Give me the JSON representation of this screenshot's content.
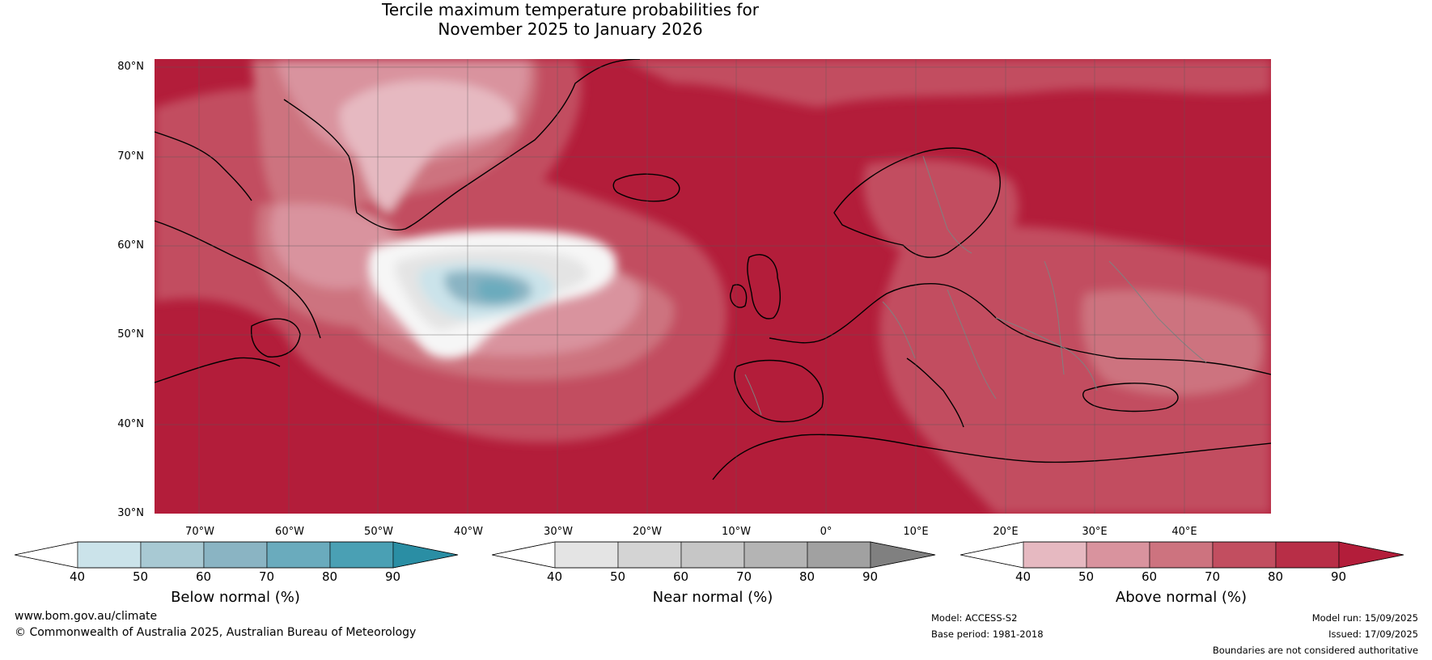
{
  "title": {
    "line1": "Tercile maximum temperature probabilities for",
    "line2": "November 2025 to January 2026"
  },
  "map": {
    "projection": "plate-carree",
    "lat_labels": [
      "80°N",
      "70°N",
      "60°N",
      "50°N",
      "40°N",
      "30°N"
    ],
    "lon_labels": [
      "70°W",
      "60°W",
      "50°W",
      "40°W",
      "30°W",
      "20°W",
      "10°W",
      "0°",
      "10°E",
      "20°E",
      "30°E",
      "40°E"
    ],
    "colors": {
      "ocean_base": "#b31d3a",
      "land_border": "#000000",
      "country_border": "#808080",
      "graticule": "#5a5a5a"
    }
  },
  "colorbars": [
    {
      "title": "Below normal (%)",
      "ticks": [
        "40",
        "50",
        "60",
        "70",
        "80",
        "90"
      ],
      "colors": [
        "#ffffff",
        "#cbe3ea",
        "#a8c9d3",
        "#8ab4c3",
        "#6aabbd",
        "#4aa0b4",
        "#2a8ea4"
      ]
    },
    {
      "title": "Near normal (%)",
      "ticks": [
        "40",
        "50",
        "60",
        "70",
        "80",
        "90"
      ],
      "colors": [
        "#ffffff",
        "#e4e4e4",
        "#d4d4d4",
        "#c6c6c6",
        "#b4b4b4",
        "#a1a1a1",
        "#808080"
      ]
    },
    {
      "title": "Above normal (%)",
      "ticks": [
        "40",
        "50",
        "60",
        "70",
        "80",
        "90"
      ],
      "colors": [
        "#ffffff",
        "#e6b9c1",
        "#d9939e",
        "#cd737f",
        "#c24e60",
        "#b82e47",
        "#b31d3a"
      ]
    }
  ],
  "footer": {
    "website": "www.bom.gov.au/climate",
    "copyright": "© Commonwealth of Australia 2025, Australian Bureau of Meteorology",
    "model": "Model: ACCESS-S2",
    "base_period": "Base period: 1981-2018",
    "model_run": "Model run: 15/09/2025",
    "issued": "Issued: 17/09/2025",
    "disclaimer": "Boundaries are not considered authoritative"
  }
}
